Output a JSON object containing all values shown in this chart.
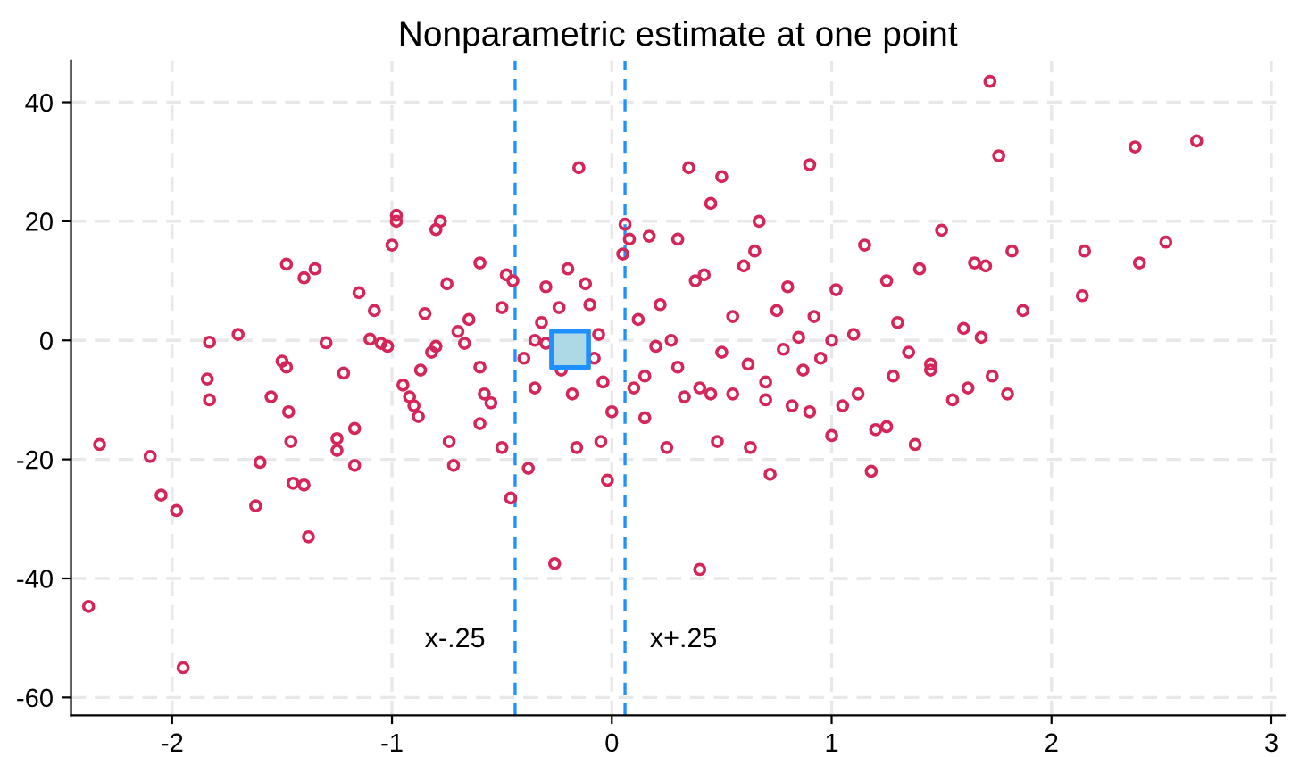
{
  "chart_data": {
    "type": "scatter",
    "title": "Nonparametric estimate at one point",
    "xlim": [
      -2.46,
      3.06
    ],
    "ylim": [
      -63,
      47
    ],
    "xticks": [
      -2,
      -1,
      0,
      1,
      2,
      3
    ],
    "yticks": [
      -60,
      -40,
      -20,
      0,
      20,
      40
    ],
    "grid": true,
    "legend": false,
    "ref_lines": [
      {
        "axis": "x",
        "value": -0.44,
        "label": "x-.25",
        "color": "#1e90ff",
        "line_style": "dashed"
      },
      {
        "axis": "x",
        "value": 0.06,
        "label": "x+.25",
        "color": "#1e90ff",
        "line_style": "dashed"
      }
    ],
    "series": [
      {
        "marker": "circle",
        "color": "#d5265a",
        "x": [
          -2.38,
          -2.33,
          -2.1,
          -2.05,
          -1.98,
          -1.95,
          -1.83,
          -1.84,
          -1.83,
          -1.7,
          -1.6,
          -1.62,
          -1.55,
          -1.5,
          -1.48,
          -1.47,
          -1.46,
          -1.45,
          -1.4,
          -1.38,
          -1.48,
          -1.4,
          -1.35,
          -1.3,
          -1.25,
          -1.25,
          -1.22,
          -1.17,
          -1.15,
          -1.17,
          -1.1,
          -1.08,
          -1.05,
          -1.02,
          -1.0,
          -0.98,
          -0.98,
          -0.95,
          -0.92,
          -0.9,
          -0.88,
          -0.87,
          -0.85,
          -0.82,
          -0.8,
          -0.78,
          -0.8,
          -0.75,
          -0.74,
          -0.72,
          -0.7,
          -0.67,
          -0.65,
          -0.6,
          -0.6,
          -0.58,
          -0.55,
          -0.5,
          -0.5,
          -0.48,
          -0.46,
          -0.45,
          -0.4,
          -0.38,
          -0.35,
          -0.32,
          -0.3,
          -0.26,
          -0.24,
          -0.23,
          -0.2,
          -0.18,
          -0.16,
          -0.15,
          -0.12,
          -0.1,
          -0.08,
          -0.06,
          -0.04,
          -0.02,
          0.0,
          0.05,
          0.06,
          0.08,
          0.1,
          0.12,
          0.15,
          0.17,
          0.2,
          0.22,
          0.25,
          0.27,
          0.3,
          0.33,
          0.35,
          0.38,
          0.4,
          0.4,
          0.42,
          0.45,
          0.48,
          0.5,
          0.5,
          0.55,
          0.55,
          0.6,
          0.62,
          0.63,
          0.67,
          0.7,
          0.72,
          0.75,
          0.78,
          0.8,
          0.82,
          0.85,
          0.87,
          0.9,
          0.92,
          0.95,
          1.0,
          1.02,
          1.05,
          1.1,
          1.12,
          1.15,
          1.18,
          1.2,
          1.25,
          1.28,
          1.3,
          1.35,
          1.38,
          1.4,
          1.45,
          1.5,
          1.55,
          1.6,
          1.62,
          1.65,
          1.72,
          1.76,
          1.68,
          1.7,
          1.73,
          1.8,
          1.82,
          1.87,
          2.14,
          2.15,
          2.38,
          2.4,
          2.52,
          2.66,
          -0.3,
          -0.35,
          0.3,
          0.9,
          1.25,
          -0.6,
          0.15,
          -0.05,
          0.65,
          0.7,
          1.0,
          0.45,
          1.45
        ],
        "values": [
          -44.7,
          -17.5,
          -19.5,
          -26,
          -28.6,
          -55,
          -0.3,
          -6.5,
          -10,
          1,
          -20.5,
          -27.8,
          -9.5,
          -3.5,
          -4.5,
          -12,
          -17,
          -24,
          -24.3,
          -33,
          12.8,
          10.5,
          12,
          -0.4,
          -16.5,
          -18.5,
          -5.5,
          -14.8,
          8,
          -21,
          0.2,
          5,
          -0.5,
          -1,
          16,
          20,
          21,
          -7.5,
          -9.5,
          -11,
          -12.8,
          -5,
          4.5,
          -2,
          18.6,
          20,
          -1,
          9.5,
          -17,
          -21,
          1.5,
          -0.5,
          3.5,
          -4.5,
          13,
          -9,
          -10.5,
          5.5,
          -18,
          11,
          -26.5,
          10,
          -3,
          -21.5,
          0,
          3,
          9,
          -37.5,
          5.5,
          -5,
          12,
          -9,
          -18,
          29,
          9.5,
          6,
          -3,
          1,
          -7,
          -23.5,
          -12,
          14.5,
          19.5,
          17,
          -8,
          3.5,
          -6,
          17.5,
          -1,
          6,
          -18,
          0,
          17,
          -9.5,
          29,
          10,
          -8,
          -38.5,
          11,
          23,
          -17,
          -2,
          27.5,
          4,
          -9,
          12.5,
          -4,
          -18,
          20,
          -10,
          -22.5,
          5,
          -1.5,
          9,
          -11,
          0.5,
          -5,
          29.5,
          4,
          -3,
          -16,
          8.5,
          -11,
          1,
          -9,
          16,
          -22,
          -15,
          10,
          -6,
          3,
          -2,
          -17.5,
          12,
          -5,
          18.5,
          -10,
          2,
          -8,
          13,
          43.5,
          31,
          0.5,
          12.5,
          -6,
          -9,
          15,
          5,
          7.5,
          15,
          32.5,
          13,
          16.5,
          33.5,
          -0.5,
          -8,
          -4.5,
          -12,
          -14.5,
          -14,
          -13,
          -17,
          15,
          -7,
          0,
          -9,
          -4
        ]
      },
      {
        "marker": "square",
        "color": "#add8e6",
        "x": [
          -0.19
        ],
        "values": [
          -1.5
        ]
      }
    ]
  }
}
